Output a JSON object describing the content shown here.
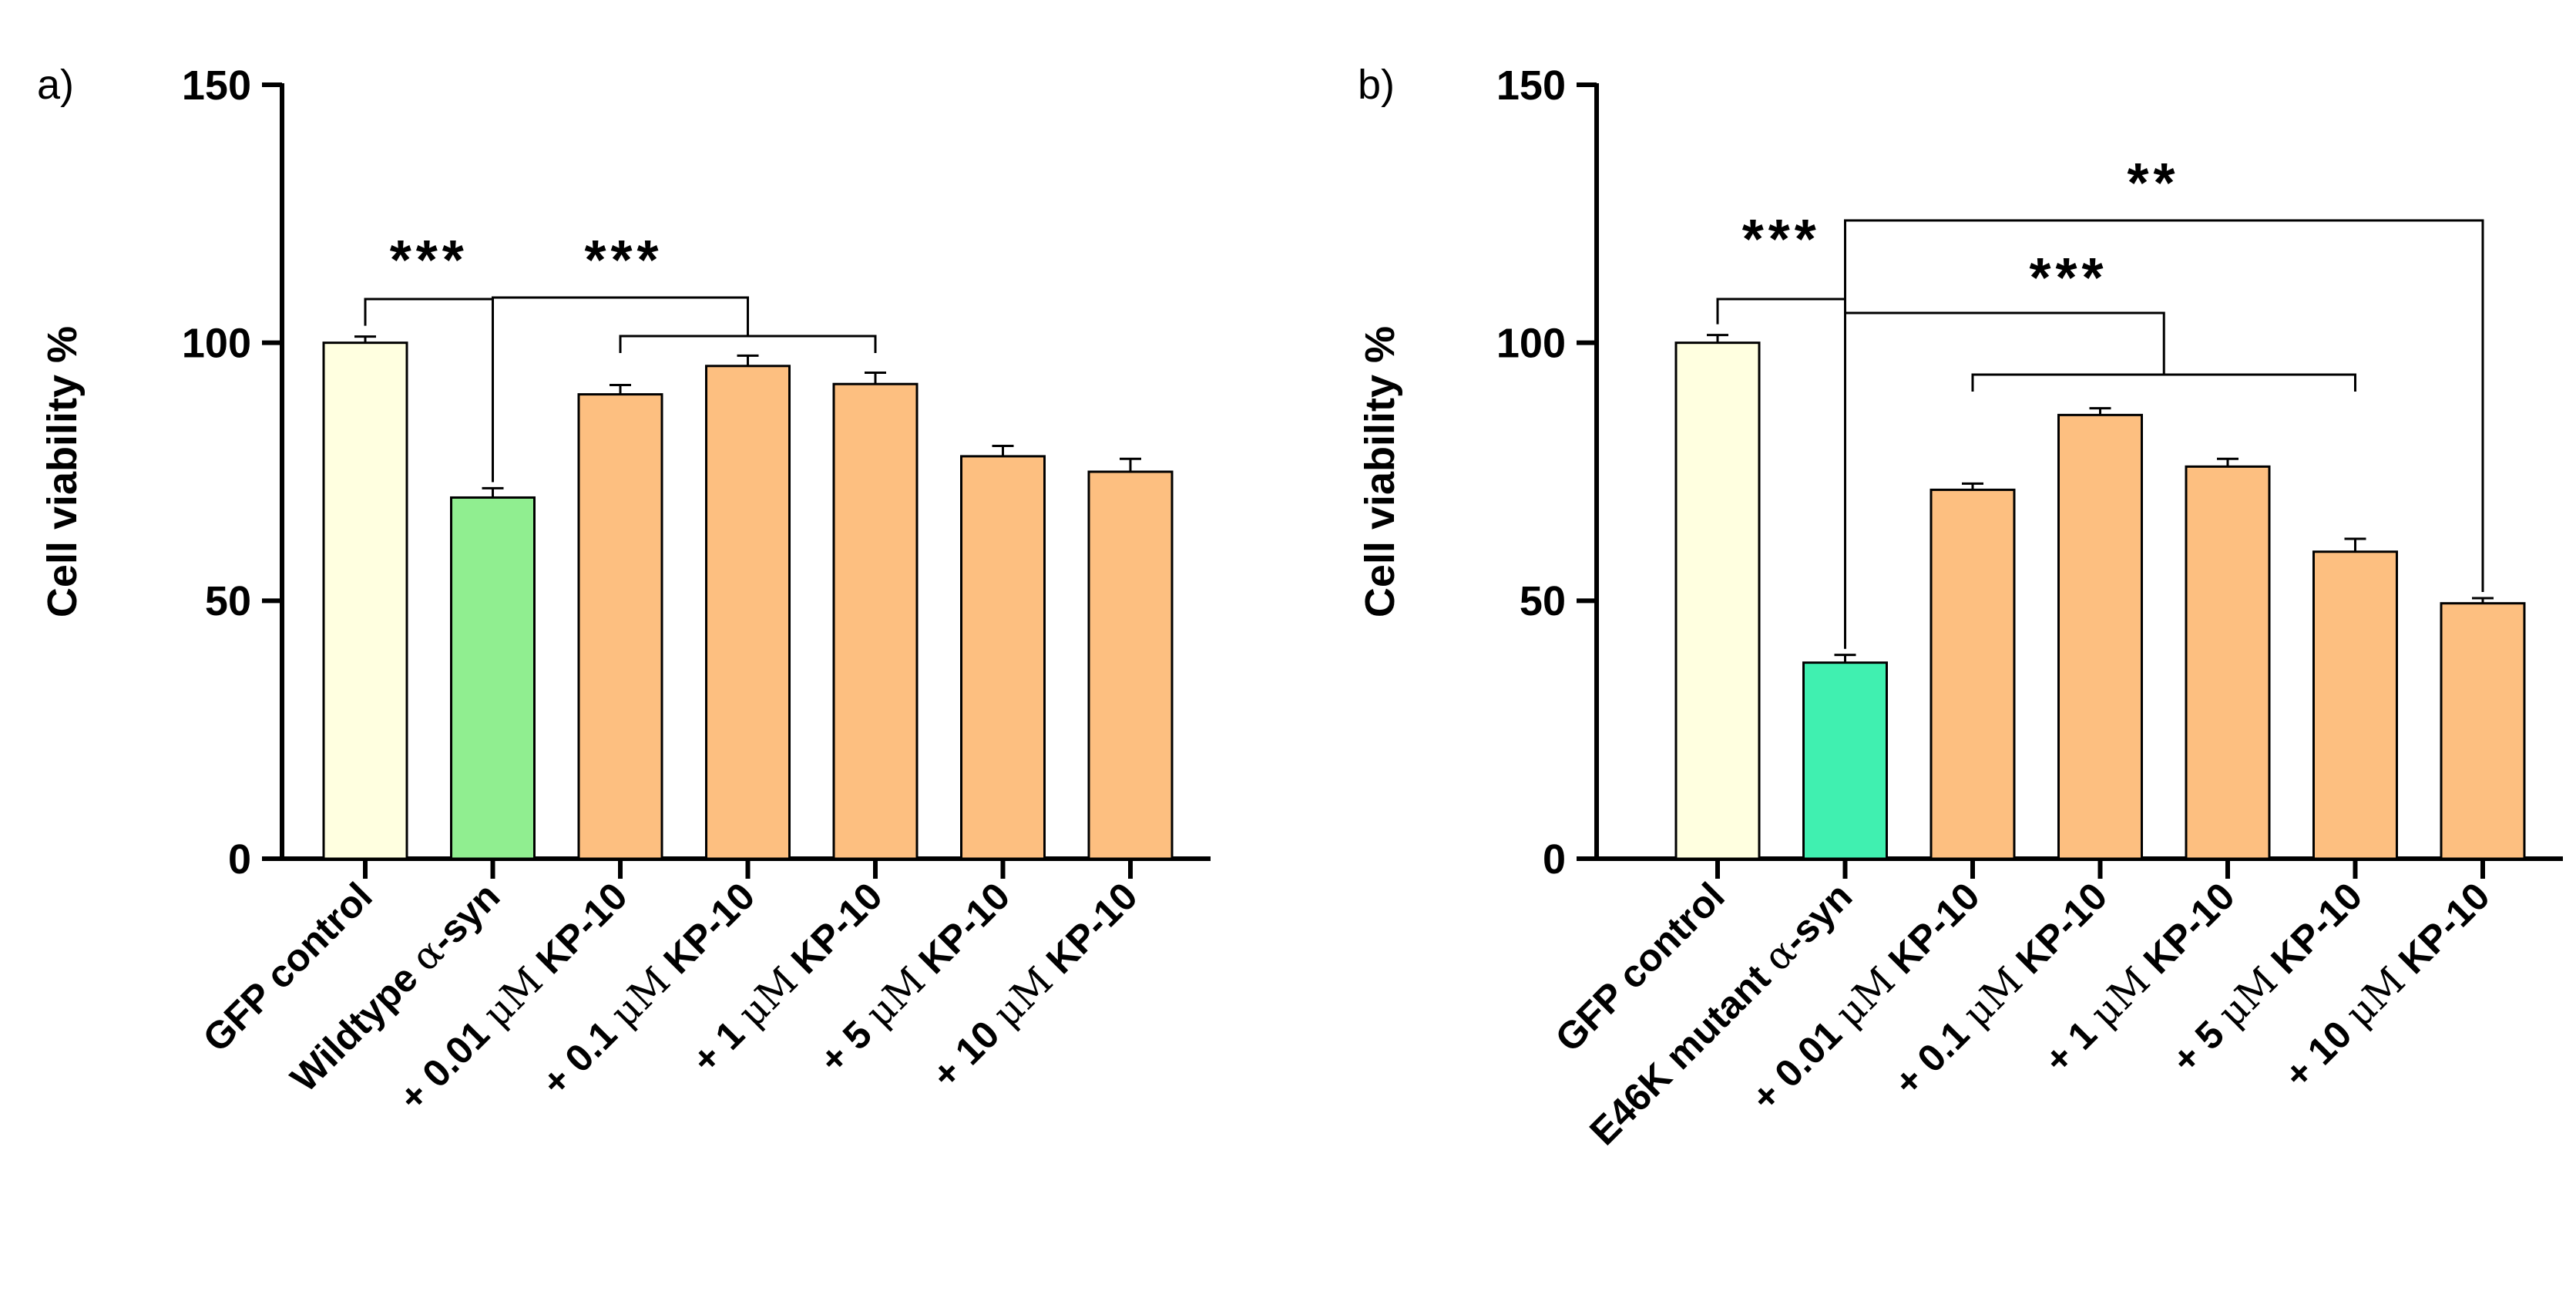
{
  "chart_data": [
    {
      "type": "bar",
      "panel_label": "a)",
      "ylabel": "Cell viability %",
      "ylim": [
        0,
        150
      ],
      "yticks": [
        "0",
        "50",
        "100",
        "150"
      ],
      "categories": [
        {
          "prefix": "",
          "greek": "",
          "suffix": "GFP control"
        },
        {
          "prefix": "Wildtype ",
          "greek": "α",
          "suffix": "-syn"
        },
        {
          "prefix": "+ 0.01 ",
          "greek": "μM",
          "suffix": " KP-10"
        },
        {
          "prefix": "+ 0.1 ",
          "greek": "μM",
          "suffix": " KP-10"
        },
        {
          "prefix": "+ 1 ",
          "greek": "μM",
          "suffix": " KP-10"
        },
        {
          "prefix": "+ 5 ",
          "greek": "μM",
          "suffix": " KP-10"
        },
        {
          "prefix": "+ 10 ",
          "greek": "μM",
          "suffix": " KP-10"
        }
      ],
      "values": [
        100,
        70,
        90,
        95.5,
        92,
        78,
        75
      ],
      "errors": [
        1.2,
        1.8,
        1.8,
        2.0,
        2.2,
        2.0,
        2.5
      ],
      "colors": [
        "#ffffe0",
        "#90ee90",
        "#fdbf80",
        "#fdbf80",
        "#fdbf80",
        "#fdbf80",
        "#fdbf80"
      ],
      "significance": [
        {
          "label": "***",
          "from": [
            0
          ],
          "to": [
            1
          ]
        },
        {
          "label": "***",
          "from": [
            1
          ],
          "to": [
            2,
            4
          ]
        }
      ]
    },
    {
      "type": "bar",
      "panel_label": "b)",
      "ylabel": "Cell viability %",
      "ylim": [
        0,
        150
      ],
      "yticks": [
        "0",
        "50",
        "100",
        "150"
      ],
      "categories": [
        {
          "prefix": "",
          "greek": "",
          "suffix": "GFP control"
        },
        {
          "prefix": "E46K mutant ",
          "greek": "α",
          "suffix": "-syn"
        },
        {
          "prefix": "+ 0.01 ",
          "greek": "μM",
          "suffix": " KP-10"
        },
        {
          "prefix": "+ 0.1 ",
          "greek": "μM",
          "suffix": " KP-10"
        },
        {
          "prefix": "+ 1 ",
          "greek": "μM",
          "suffix": " KP-10"
        },
        {
          "prefix": "+ 5 ",
          "greek": "μM",
          "suffix": " KP-10"
        },
        {
          "prefix": "+ 10 ",
          "greek": "μM",
          "suffix": " KP-10"
        }
      ],
      "values": [
        100,
        38,
        71.5,
        86,
        76,
        59.5,
        49.5
      ],
      "errors": [
        1.5,
        1.5,
        1.2,
        1.3,
        1.5,
        2.5,
        1.0
      ],
      "colors": [
        "#ffffe0",
        "#40f0b0",
        "#fdbf80",
        "#fdbf80",
        "#fdbf80",
        "#fdbf80",
        "#fdbf80"
      ],
      "significance": [
        {
          "label": "***",
          "from": [
            0
          ],
          "to": [
            1
          ]
        },
        {
          "label": "***",
          "from": [
            1
          ],
          "to": [
            2,
            5
          ]
        },
        {
          "label": "**",
          "from": [
            1
          ],
          "to": [
            6
          ]
        }
      ]
    }
  ]
}
